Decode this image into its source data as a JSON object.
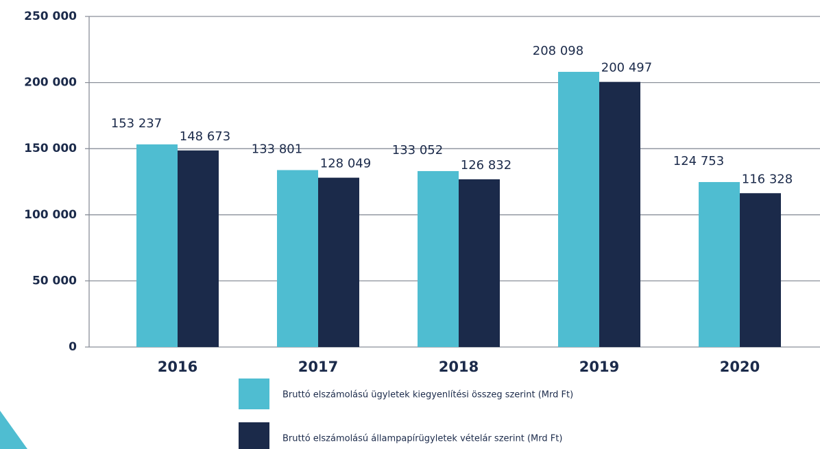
{
  "chart_data": {
    "type": "bar",
    "categories": [
      "2016",
      "2017",
      "2018",
      "2019",
      "2020"
    ],
    "series": [
      {
        "name": "Bruttó elszámolású ügyletek kiegyenlítési összeg szerint (Mrd Ft)",
        "color": "#4fbdd1",
        "values": [
          153237,
          133801,
          133052,
          208098,
          124753
        ],
        "value_labels": [
          "153 237",
          "133 801",
          "133 052",
          "208 098",
          "124 753"
        ]
      },
      {
        "name": "Bruttó elszámolású állampapírügyletek vételár szerint (Mrd Ft)",
        "color": "#1b2a4a",
        "values": [
          148673,
          128049,
          126832,
          200497,
          116328
        ],
        "value_labels": [
          "148 673",
          "128 049",
          "126 832",
          "200 497",
          "116 328"
        ]
      }
    ],
    "ylim": [
      0,
      250000
    ],
    "yticks": [
      0,
      {
        "value": 50000,
        "label": "50 000"
      },
      {
        "value": 100000,
        "label": "100 000"
      },
      {
        "value": 150000,
        "label": "150 000"
      },
      {
        "value": 200000,
        "label": "200 000"
      },
      {
        "value": 250000,
        "label": "250 000"
      }
    ],
    "grid": true
  }
}
